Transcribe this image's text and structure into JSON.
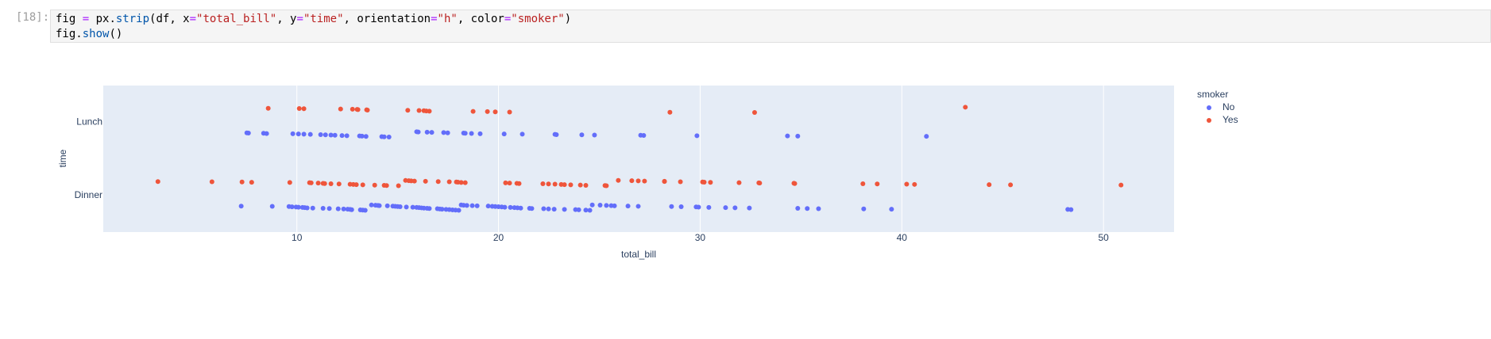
{
  "cell": {
    "prompt": "[18]:",
    "code": [
      [
        "fig ",
        "=",
        " px.",
        "strip",
        "(df, x",
        "=",
        "\"total_bill\"",
        ", y",
        "=",
        "\"time\"",
        ", orientation",
        "=",
        "\"h\"",
        ", color",
        "=",
        "\"smoker\"",
        ")"
      ],
      [
        "fig.",
        "show",
        "()"
      ]
    ]
  },
  "chart_data": {
    "type": "strip",
    "x_label": "total_bill",
    "y_label": "time",
    "legend_title": "smoker",
    "categories": [
      "Dinner",
      "Lunch"
    ],
    "series": [
      {
        "name": "No",
        "color": "#636efa",
        "values": [
          [
            7.24,
            8.78,
            9.61,
            9.76,
            9.96,
            10.08,
            10.28,
            10.39,
            10.51,
            10.79,
            11.3,
            11.61,
            12.05,
            12.32,
            12.52,
            12.64,
            12.72,
            13.15,
            13.27,
            13.39,
            13.7,
            13.9,
            14.02,
            14.09,
            14.49,
            14.76,
            14.88,
            15.0,
            15.12,
            15.43,
            15.75,
            15.94,
            16.06,
            16.18,
            16.3,
            16.46,
            16.57,
            16.97,
            17.09,
            17.2,
            17.4,
            17.56,
            17.72,
            17.87,
            18.03,
            18.15,
            18.27,
            18.43,
            18.7,
            18.94,
            19.49,
            19.69,
            19.84,
            20.0,
            20.16,
            20.31,
            20.59,
            20.79,
            20.94,
            21.1,
            21.54,
            21.65,
            22.24,
            22.48,
            22.76,
            23.27,
            23.82,
            23.98,
            24.33,
            24.53,
            24.65,
            25.04,
            25.35,
            25.59,
            25.75,
            26.42,
            26.93,
            28.58,
            29.06,
            29.8,
            29.92,
            30.43,
            31.26,
            31.73,
            32.44,
            34.84,
            35.31,
            35.87,
            38.11,
            39.49,
            48.23,
            48.39
          ],
          [
            7.52,
            7.6,
            8.35,
            8.5,
            9.8,
            10.08,
            10.35,
            10.67,
            11.18,
            11.42,
            11.69,
            11.89,
            12.24,
            12.48,
            13.11,
            13.23,
            13.43,
            14.21,
            14.33,
            14.57,
            15.94,
            16.02,
            16.46,
            16.69,
            17.28,
            17.48,
            18.27,
            18.35,
            18.66,
            19.09,
            20.28,
            21.18,
            22.8,
            22.87,
            24.13,
            24.76,
            27.05,
            27.2,
            29.84,
            34.33,
            34.84,
            41.22
          ]
        ]
      },
      {
        "name": "Yes",
        "color": "#EF553B",
        "values": [
          [
            3.11,
            5.79,
            7.28,
            7.76,
            9.65,
            10.63,
            10.71,
            11.06,
            11.3,
            11.38,
            11.69,
            12.09,
            12.64,
            12.8,
            12.95,
            13.27,
            13.86,
            14.33,
            14.45,
            15.04,
            15.39,
            15.55,
            15.67,
            15.83,
            16.38,
            17.01,
            17.56,
            17.91,
            17.99,
            18.15,
            18.35,
            20.35,
            20.55,
            20.91,
            21.02,
            22.2,
            22.48,
            22.8,
            23.11,
            23.27,
            23.58,
            24.06,
            24.33,
            25.28,
            25.35,
            25.94,
            26.61,
            26.93,
            27.24,
            28.23,
            28.23,
            29.02,
            30.12,
            30.2,
            30.51,
            31.93,
            32.91,
            32.95,
            34.65,
            34.69,
            38.07,
            38.78,
            40.24,
            40.63,
            44.33,
            45.39,
            50.87
          ],
          [
            8.58,
            10.12,
            10.35,
            12.17,
            12.76,
            12.99,
            13.03,
            13.46,
            13.5,
            15.5,
            16.06,
            16.3,
            16.42,
            16.57,
            18.74,
            19.45,
            19.84,
            20.55,
            28.5,
            32.7,
            43.15
          ]
        ]
      }
    ],
    "xlim": [
      0.4,
      53.5
    ],
    "xticks": [
      10,
      20,
      30,
      40,
      50
    ],
    "grid": true
  }
}
